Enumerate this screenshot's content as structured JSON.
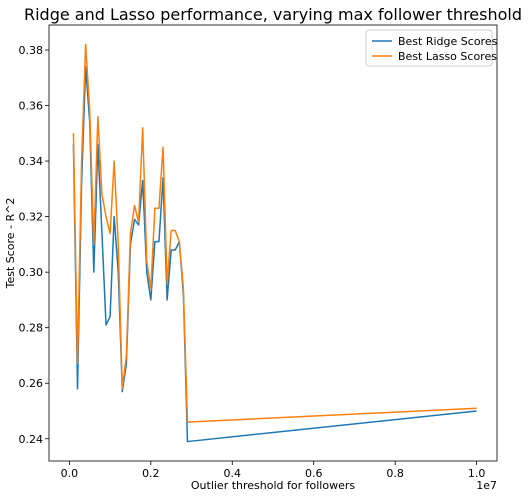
{
  "chart_data": {
    "type": "line",
    "title": "Ridge and Lasso performance, varying max follower threshold",
    "xlabel": "Outlier threshold for followers",
    "ylabel": "Test Score - R^2",
    "x_offset_label": "1e7",
    "xlim": [
      -0.05,
      1.05
    ],
    "ylim": [
      0.232,
      0.389
    ],
    "x_ticks": [
      0.0,
      0.2,
      0.4,
      0.6,
      0.8,
      1.0
    ],
    "x_tick_labels": [
      "0.0",
      "0.2",
      "0.4",
      "0.6",
      "0.8",
      "1.0"
    ],
    "y_ticks": [
      0.24,
      0.26,
      0.28,
      0.3,
      0.32,
      0.34,
      0.36,
      0.38
    ],
    "y_tick_labels": [
      "0.24",
      "0.26",
      "0.28",
      "0.30",
      "0.32",
      "0.34",
      "0.36",
      "0.38"
    ],
    "grid": false,
    "legend_position": "top-right",
    "x": [
      0.01,
      0.02,
      0.03,
      0.04,
      0.05,
      0.06,
      0.07,
      0.08,
      0.09,
      0.1,
      0.11,
      0.12,
      0.13,
      0.14,
      0.15,
      0.16,
      0.17,
      0.18,
      0.19,
      0.2,
      0.21,
      0.22,
      0.23,
      0.24,
      0.25,
      0.26,
      0.27,
      0.28,
      0.29,
      1.0
    ],
    "series": [
      {
        "name": "Best Ridge Scores",
        "color": "#1f77b4",
        "values": [
          0.346,
          0.258,
          0.332,
          0.374,
          0.354,
          0.3,
          0.346,
          0.314,
          0.281,
          0.284,
          0.32,
          0.3,
          0.257,
          0.267,
          0.31,
          0.319,
          0.317,
          0.333,
          0.3,
          0.29,
          0.311,
          0.311,
          0.334,
          0.29,
          0.308,
          0.308,
          0.311,
          0.292,
          0.239,
          0.25
        ]
      },
      {
        "name": "Best Lasso Scores",
        "color": "#ff7f0e",
        "values": [
          0.35,
          0.267,
          0.34,
          0.382,
          0.358,
          0.31,
          0.356,
          0.328,
          0.32,
          0.314,
          0.34,
          0.31,
          0.258,
          0.27,
          0.314,
          0.324,
          0.318,
          0.352,
          0.304,
          0.294,
          0.323,
          0.323,
          0.345,
          0.296,
          0.315,
          0.315,
          0.311,
          0.294,
          0.246,
          0.251
        ]
      }
    ]
  }
}
